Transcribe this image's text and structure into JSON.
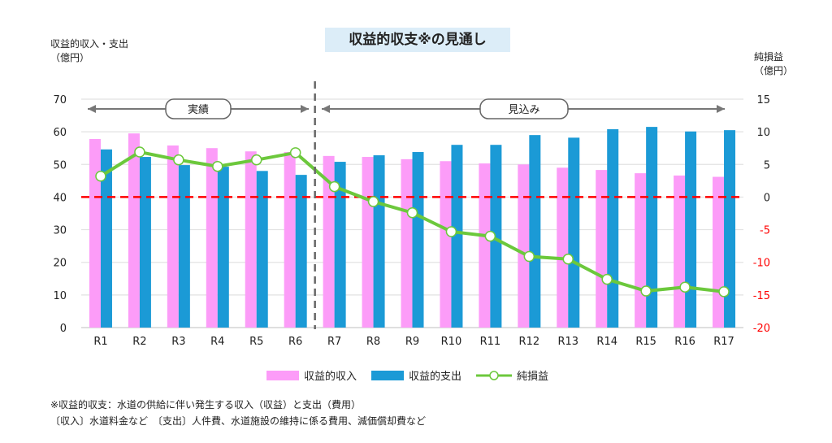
{
  "chart_data": {
    "type": "bar+line",
    "title": "収益的収支※の見通し",
    "ylabel_left": [
      "収益的収入・支出",
      "（億円）"
    ],
    "ylabel_right": [
      "純損益",
      "（億円）"
    ],
    "ylim_left": [
      0,
      70
    ],
    "yticks_left": [
      "0",
      "10",
      "20",
      "30",
      "40",
      "50",
      "60",
      "70"
    ],
    "ylim_right": [
      -20,
      15
    ],
    "yticks_right": [
      "-20",
      "-15",
      "-10",
      "-5",
      "0",
      "5",
      "10",
      "15"
    ],
    "categories": [
      "R1",
      "R2",
      "R3",
      "R4",
      "R5",
      "R6",
      "R7",
      "R8",
      "R9",
      "R10",
      "R11",
      "R12",
      "R13",
      "R14",
      "R15",
      "R16",
      "R17"
    ],
    "series": [
      {
        "name": "収益的収入",
        "type": "bar",
        "axis": "left",
        "color": "#fc9cf8",
        "values": [
          57.8,
          59.5,
          55.8,
          55.0,
          54.0,
          53.8,
          52.6,
          52.3,
          51.6,
          51.0,
          50.3,
          50.0,
          49.0,
          48.3,
          47.3,
          46.6,
          46.2
        ]
      },
      {
        "name": "収益的支出",
        "type": "bar",
        "axis": "left",
        "color": "#1b9ad6",
        "values": [
          54.6,
          52.3,
          49.8,
          49.3,
          48.0,
          46.8,
          50.8,
          52.8,
          53.8,
          56.0,
          56.0,
          59.0,
          58.2,
          60.8,
          61.5,
          60.1,
          60.5
        ]
      },
      {
        "name": "純損益",
        "type": "line",
        "axis": "right",
        "color": "#6cc83c",
        "values": [
          3.2,
          6.9,
          5.7,
          4.7,
          5.7,
          6.8,
          1.6,
          -0.7,
          -2.4,
          -5.3,
          -6.0,
          -9.1,
          -9.5,
          -12.6,
          -14.4,
          -13.8,
          -14.5
        ]
      }
    ],
    "zero_line_color": "#ff0000",
    "periods": [
      {
        "label": "実績",
        "range": [
          "R1",
          "R6"
        ]
      },
      {
        "label": "見込み",
        "range": [
          "R7",
          "R17"
        ]
      }
    ],
    "grid": true,
    "legend": "bottom"
  },
  "notes": [
    "※収益的収支：水道の供給に伴い発生する収入（収益）と支出（費用）",
    "〔収入〕水道料金など　〔支出〕人件費、水道施設の維持に係る費用、減価償却費など"
  ]
}
